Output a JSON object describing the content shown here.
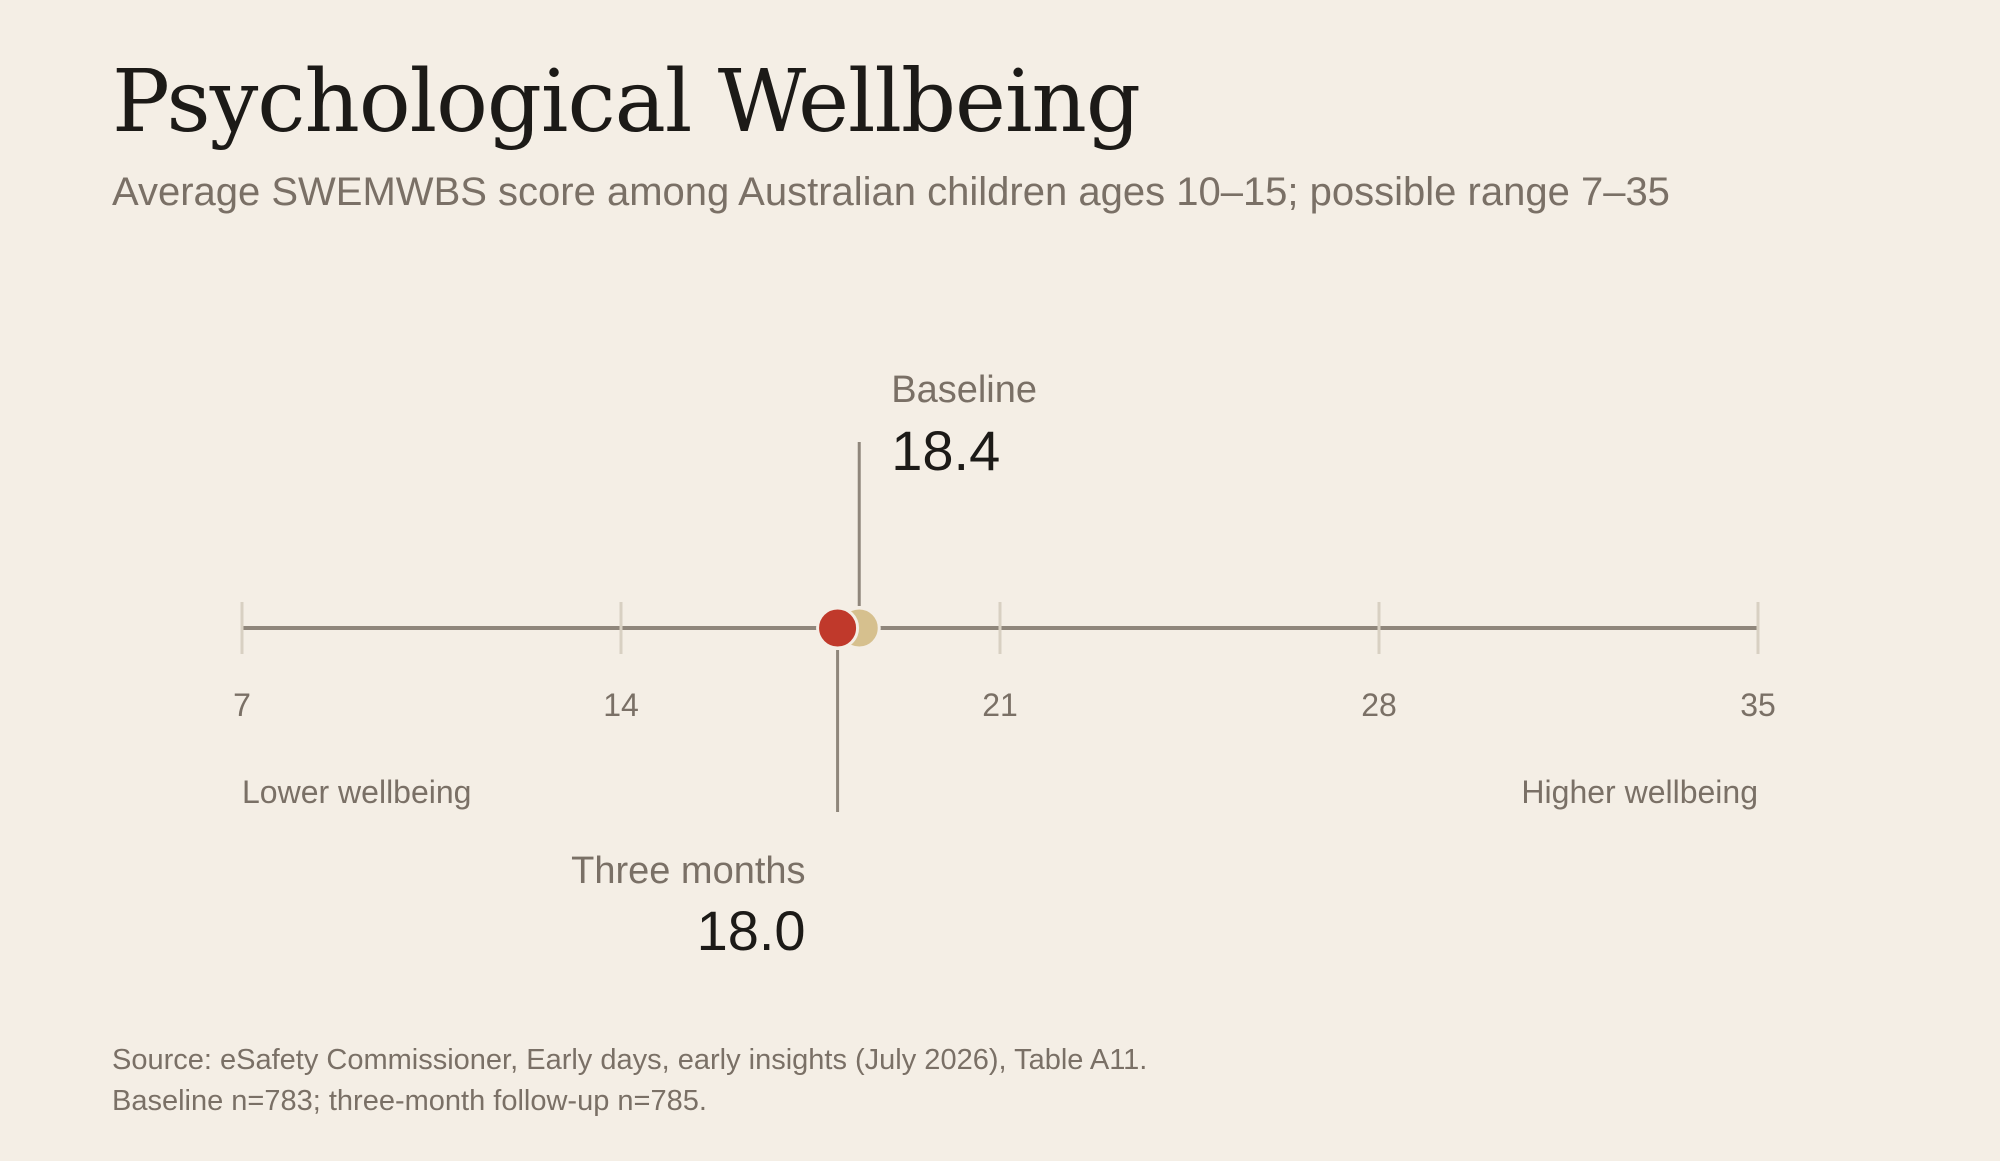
{
  "header": {
    "title": "Psychological Wellbeing",
    "subtitle": "Average SWEMWBS score among Australian children ages 10–15; possible range 7–35"
  },
  "chart_data": {
    "type": "scatter",
    "xlim": [
      7,
      35
    ],
    "ticks": [
      7,
      14,
      21,
      28,
      35
    ],
    "scale_labels": {
      "low": "Lower wellbeing",
      "high": "Higher wellbeing"
    },
    "points": [
      {
        "label": "Baseline",
        "value": 18.4,
        "display": "18.4",
        "color": "#d6c08e",
        "position": "above"
      },
      {
        "label": "Three months",
        "value": 18.0,
        "display": "18.0",
        "color": "#c0392b",
        "position": "below"
      }
    ],
    "grid": false,
    "legend": "none"
  },
  "footer": {
    "source_line1": "Source: eSafety Commissioner, Early days, early insights (July 2026), Table A11.",
    "source_line2": "Baseline n=783; three-month follow-up n=785."
  },
  "colors": {
    "background": "#f4eee5",
    "axis": "#8f867b",
    "tick": "#d8d0c2",
    "muted_text": "#7a7066",
    "value_text": "#1c1a17"
  }
}
